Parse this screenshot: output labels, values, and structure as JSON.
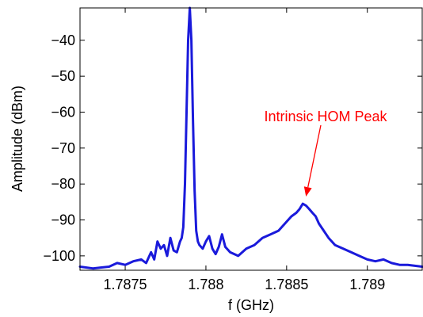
{
  "chart_data": {
    "type": "line",
    "title": "",
    "xlabel": "f (GHz)",
    "ylabel": "Amplitude (dBm)",
    "xlim": [
      1.78722,
      1.78934
    ],
    "ylim": [
      -104,
      -31
    ],
    "xticks": [
      1.7875,
      1.788,
      1.7885,
      1.789
    ],
    "xtick_labels": [
      "1.7875",
      "1.788",
      "1.7885",
      "1.789"
    ],
    "yticks": [
      -100,
      -90,
      -80,
      -70,
      -60,
      -50,
      -40
    ],
    "ytick_labels": [
      "−100",
      "−90",
      "−80",
      "−70",
      "−60",
      "−50",
      "−40"
    ],
    "grid": false,
    "line_color": "#1a1adb",
    "series": [
      {
        "x": [
          1.78722,
          1.7873,
          1.7874,
          1.78745,
          1.7875,
          1.78755,
          1.7876,
          1.78763,
          1.78766,
          1.78768,
          1.7877,
          1.78772,
          1.78774,
          1.78776,
          1.78778,
          1.7878,
          1.78782,
          1.78784,
          1.78785,
          1.78786,
          1.78787,
          1.78788,
          1.78789,
          1.7879,
          1.78791,
          1.78792,
          1.78793,
          1.78794,
          1.78795,
          1.78796,
          1.78798,
          1.788,
          1.78802,
          1.78804,
          1.78806,
          1.78808,
          1.7881,
          1.78812,
          1.78815,
          1.7882,
          1.78825,
          1.7883,
          1.78835,
          1.7884,
          1.78845,
          1.7885,
          1.78853,
          1.78856,
          1.78858,
          1.7886,
          1.78862,
          1.78864,
          1.78866,
          1.78868,
          1.7887,
          1.78873,
          1.78876,
          1.7888,
          1.78885,
          1.7889,
          1.78895,
          1.789,
          1.78905,
          1.7891,
          1.78915,
          1.7892,
          1.78925,
          1.78934
        ],
        "y": [
          -103,
          -103.5,
          -103,
          -102,
          -102.5,
          -101.5,
          -101,
          -102,
          -99,
          -101,
          -96,
          -98,
          -97,
          -100,
          -95,
          -98.5,
          -99,
          -96,
          -95,
          -92,
          -80,
          -60,
          -40,
          -30,
          -40,
          -62,
          -82,
          -93,
          -96,
          -97,
          -98,
          -96,
          -94.5,
          -98,
          -99.5,
          -97.5,
          -94,
          -97.5,
          -99,
          -100,
          -98,
          -97,
          -95,
          -94,
          -93,
          -90.5,
          -89,
          -88,
          -87,
          -85.5,
          -86,
          -87,
          -88,
          -89,
          -91,
          -93,
          -95,
          -97,
          -98,
          -99,
          -100,
          -101,
          -101.5,
          -101,
          -102,
          -102.5,
          -102.5,
          -103
        ]
      }
    ],
    "annotation": {
      "text": "Intrinsic HOM Peak",
      "color": "#ff0000",
      "target_x": 1.78862,
      "target_y": -83.5
    }
  }
}
